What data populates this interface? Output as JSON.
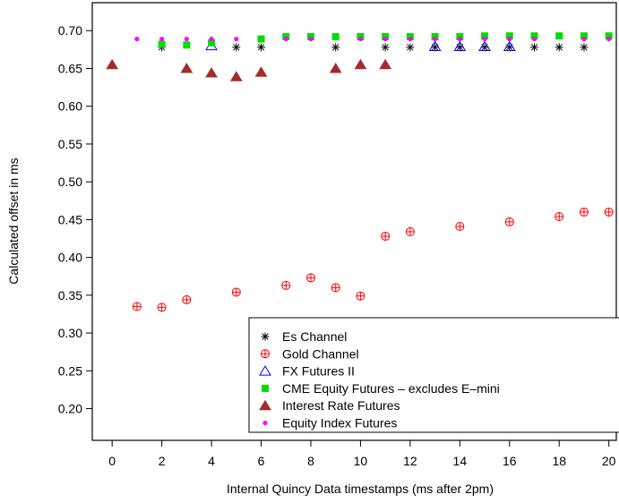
{
  "chart_data": {
    "type": "scatter",
    "title": "",
    "xlabel": "Internal Quincy Data timestamps (ms after 2pm)",
    "ylabel": "Calculated offset in ms",
    "xlim": [
      -0.8,
      20.3
    ],
    "ylim": [
      0.158,
      0.737
    ],
    "x_ticks": [
      0,
      2,
      4,
      6,
      8,
      10,
      12,
      14,
      16,
      18,
      20
    ],
    "x_tick_labels": [
      "0",
      "2",
      "4",
      "6",
      "8",
      "10",
      "12",
      "14",
      "16",
      "18",
      "20"
    ],
    "y_ticks": [
      0.2,
      0.25,
      0.3,
      0.35,
      0.4,
      0.45,
      0.5,
      0.55,
      0.6,
      0.65,
      0.7
    ],
    "y_tick_labels": [
      "0.20",
      "0.25",
      "0.30",
      "0.35",
      "0.40",
      "0.45",
      "0.50",
      "0.55",
      "0.60",
      "0.65",
      "0.70"
    ],
    "grid": false,
    "legend_position": "bottom-right",
    "series": [
      {
        "name": "Es Channel",
        "marker": "asterisk",
        "color": "#000000",
        "x": [
          2,
          5,
          6,
          9,
          11,
          12,
          13,
          14,
          15,
          16,
          17,
          18,
          19
        ],
        "y": [
          0.678,
          0.678,
          0.678,
          0.678,
          0.678,
          0.678,
          0.678,
          0.678,
          0.678,
          0.678,
          0.678,
          0.678,
          0.678
        ]
      },
      {
        "name": "Gold Channel",
        "marker": "circle-plus",
        "color": "#ff0000",
        "x": [
          1,
          2,
          3,
          5,
          7,
          8,
          9,
          10,
          11,
          12,
          14,
          16,
          18,
          19,
          20
        ],
        "y": [
          0.335,
          0.334,
          0.344,
          0.354,
          0.363,
          0.373,
          0.36,
          0.349,
          0.428,
          0.434,
          0.441,
          0.447,
          0.454,
          0.46,
          0.46
        ]
      },
      {
        "name": "FX Futures II",
        "marker": "triangle-open",
        "color": "#0000ff",
        "x": [
          4,
          13,
          14,
          15,
          16
        ],
        "y": [
          0.68,
          0.679,
          0.679,
          0.679,
          0.679
        ]
      },
      {
        "name": "CME Equity Futures – excludes E–mini",
        "marker": "square-filled",
        "color": "#00dd00",
        "x": [
          2,
          3,
          4,
          6,
          7,
          8,
          9,
          10,
          11,
          12,
          13,
          14,
          15,
          16,
          17,
          18,
          19,
          20
        ],
        "y": [
          0.682,
          0.681,
          0.684,
          0.689,
          0.692,
          0.692,
          0.692,
          0.692,
          0.692,
          0.692,
          0.692,
          0.692,
          0.693,
          0.693,
          0.693,
          0.693,
          0.693,
          0.693
        ]
      },
      {
        "name": "Interest Rate Futures",
        "marker": "triangle-filled",
        "color": "#a52a2a",
        "x": [
          0,
          3,
          4,
          5,
          6,
          9,
          10,
          11
        ],
        "y": [
          0.655,
          0.65,
          0.644,
          0.639,
          0.645,
          0.65,
          0.655,
          0.655
        ]
      },
      {
        "name": "Equity Index Futures",
        "marker": "dot",
        "color": "#ff00ff",
        "x": [
          1,
          2,
          3,
          4,
          5,
          7,
          8,
          10,
          11,
          12,
          13,
          14,
          15,
          16,
          17,
          19,
          20
        ],
        "y": [
          0.689,
          0.689,
          0.689,
          0.689,
          0.689,
          0.689,
          0.689,
          0.689,
          0.689,
          0.689,
          0.689,
          0.689,
          0.689,
          0.689,
          0.689,
          0.689,
          0.689
        ]
      }
    ]
  }
}
